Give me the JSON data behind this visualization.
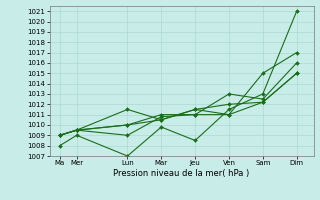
{
  "xlabel": "Pression niveau de la mer( hPa )",
  "background_color": "#c8ece8",
  "grid_color": "#a8d4cc",
  "line_color": "#1a6e1a",
  "ylim": [
    1007,
    1021.5
  ],
  "yticks": [
    1007,
    1008,
    1009,
    1010,
    1011,
    1012,
    1013,
    1014,
    1015,
    1016,
    1017,
    1018,
    1019,
    1020,
    1021
  ],
  "xtick_labels": [
    "Ma",
    "Mer",
    "Lun",
    "Mar",
    "Jeu",
    "Ven",
    "Sam",
    "Dim"
  ],
  "xtick_positions": [
    0,
    0.5,
    2,
    3,
    4,
    5,
    6,
    7
  ],
  "lines": [
    [
      1008.0,
      1009.0,
      1007.0,
      1009.8,
      1008.5,
      1011.5,
      1013.0,
      1021.0
    ],
    [
      1009.0,
      1009.5,
      1011.5,
      1010.5,
      1011.5,
      1011.0,
      1015.0,
      1017.0
    ],
    [
      1009.0,
      1009.5,
      1010.0,
      1010.5,
      1011.5,
      1012.0,
      1012.2,
      1015.0
    ],
    [
      1009.0,
      1009.5,
      1009.0,
      1010.8,
      1011.0,
      1013.0,
      1012.5,
      1016.0
    ],
    [
      1009.0,
      1009.5,
      1010.0,
      1011.0,
      1011.0,
      1011.0,
      1012.2,
      1015.0
    ]
  ],
  "ylabel_fontsize": 5.5,
  "xlabel_fontsize": 6,
  "tick_fontsize": 5,
  "linewidth": 0.8,
  "markersize": 2.0
}
